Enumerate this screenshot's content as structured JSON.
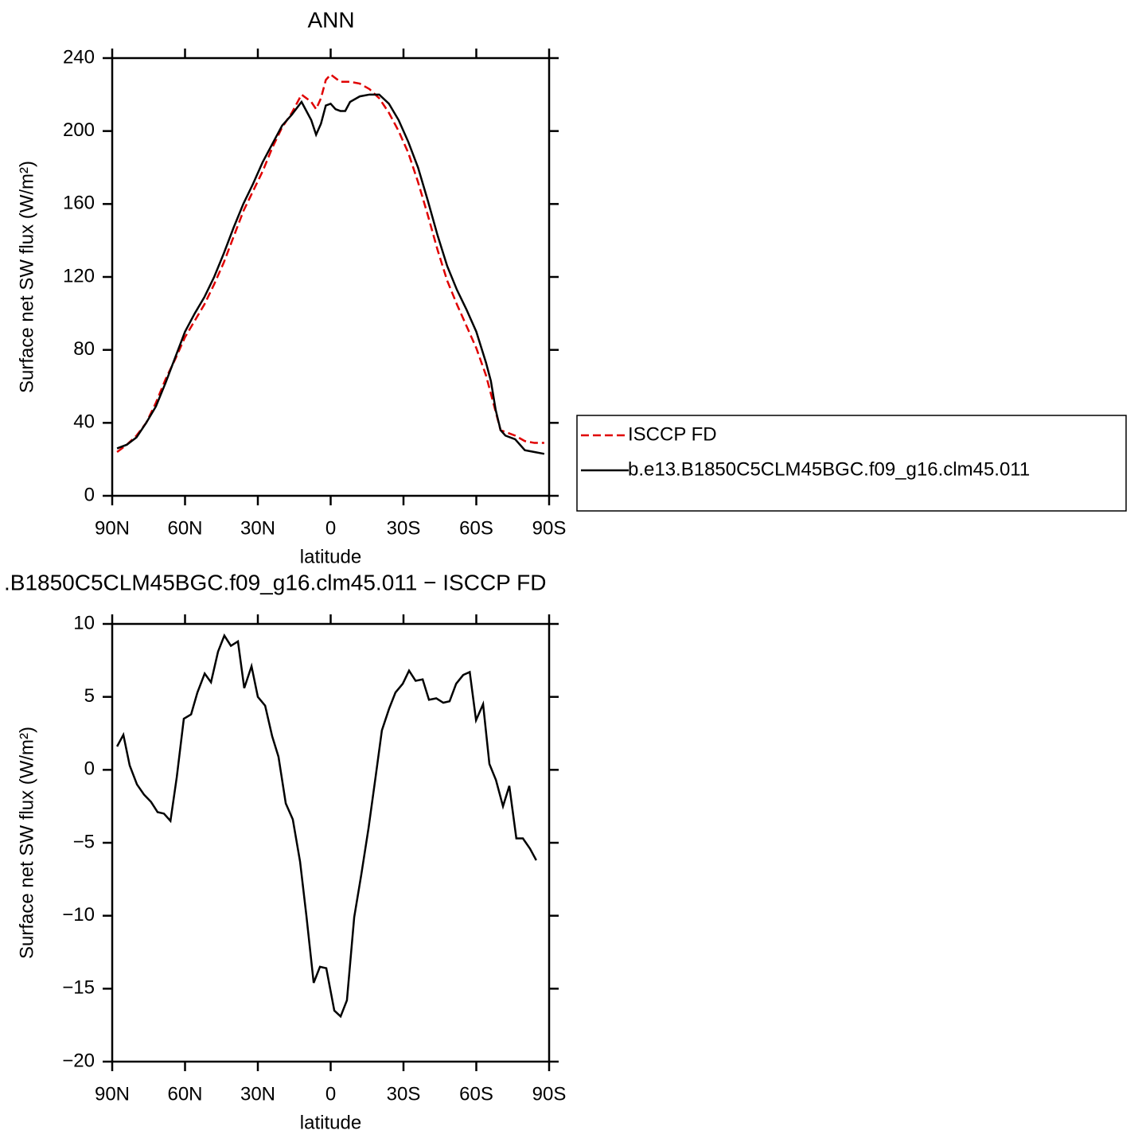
{
  "chart_data": [
    {
      "type": "line",
      "title": "ANN",
      "xlabel": "latitude",
      "ylabel": "Surface net SW flux (W/m²)",
      "x": [
        88,
        84,
        80,
        76,
        72,
        68,
        64,
        60,
        56,
        52,
        48,
        44,
        40,
        36,
        32,
        28,
        24,
        20,
        16,
        12,
        8,
        6,
        4,
        2,
        0,
        -2,
        -4,
        -6,
        -8,
        -12,
        -16,
        -20,
        -24,
        -28,
        -32,
        -36,
        -40,
        -44,
        -48,
        -52,
        -56,
        -60,
        -64,
        -66,
        -68,
        -70,
        -72,
        -76,
        -80,
        -84,
        -88
      ],
      "series": [
        {
          "name": "ISCCP FD",
          "color": "#e00000",
          "dashed": true,
          "values": [
            24,
            28,
            33,
            40,
            51,
            64,
            75,
            87,
            96,
            105,
            116,
            128,
            142,
            156,
            167,
            178,
            191,
            202,
            210,
            220,
            216,
            212,
            218,
            228,
            231,
            229,
            227,
            227,
            227,
            226,
            223,
            218,
            210,
            200,
            188,
            172,
            154,
            135,
            118,
            105,
            93,
            81,
            66,
            56,
            46,
            36,
            35,
            33,
            30,
            29,
            29
          ]
        },
        {
          "name": "b.e13.B1850C5CLM45BGC.f09_g16.clm45.011",
          "color": "#000000",
          "dashed": false,
          "values": [
            26,
            28,
            32,
            40,
            49,
            62,
            76,
            90,
            100,
            109,
            120,
            133,
            147,
            160,
            171,
            183,
            193,
            203,
            209,
            216,
            206,
            198,
            204,
            214,
            215,
            212,
            211,
            211,
            216,
            219,
            220,
            220,
            215,
            206,
            194,
            180,
            162,
            143,
            126,
            113,
            102,
            90,
            73,
            63,
            47,
            36,
            33,
            31,
            25,
            24,
            23
          ]
        }
      ],
      "xlim": [
        90,
        -90
      ],
      "xticks": [
        {
          "value": 90,
          "label": "90N"
        },
        {
          "value": 60,
          "label": "60N"
        },
        {
          "value": 30,
          "label": "30N"
        },
        0,
        {
          "value": -30,
          "label": "30S"
        },
        {
          "value": -60,
          "label": "60S"
        },
        {
          "value": -90,
          "label": "90S"
        }
      ],
      "ylim": [
        0,
        240
      ],
      "yticks": [
        0,
        40,
        80,
        120,
        160,
        200,
        240
      ],
      "legend": "right"
    },
    {
      "type": "line",
      "title": ".B1850C5CLM45BGC.f09_g16.clm45.011 − ISCCP FD",
      "xlabel": "latitude",
      "ylabel": "Surface net SW flux (W/m²)",
      "x": [
        88,
        85.4,
        82.8,
        79.8,
        76.9,
        74,
        71.3,
        68.7,
        66,
        63.4,
        60.5,
        57.5,
        54.9,
        51.9,
        49.3,
        46.4,
        43.8,
        41.1,
        38.2,
        35.6,
        32.6,
        30,
        27,
        24.1,
        21.5,
        18.5,
        15.6,
        12.6,
        10,
        7,
        4.4,
        1.8,
        -1.5,
        -4.1,
        -6.7,
        -9.7,
        -12.6,
        -15.6,
        -18.5,
        -21.1,
        -24.1,
        -26.7,
        -29.7,
        -32.3,
        -35,
        -37.9,
        -40.5,
        -43.5,
        -46.4,
        -49,
        -51.7,
        -54.6,
        -57.3,
        -59.9,
        -62.8,
        -65.4,
        -68.1,
        -71,
        -73.6,
        -76.5,
        -79.2,
        -82.1,
        -84.7
      ],
      "values": [
        1.6,
        2.4,
        0.3,
        -1.0,
        -1.7,
        -2.2,
        -2.9,
        -3.0,
        -3.5,
        -0.5,
        3.5,
        3.8,
        5.3,
        6.6,
        6.0,
        8.1,
        9.2,
        8.5,
        8.8,
        5.6,
        7.1,
        5.0,
        4.4,
        2.3,
        0.9,
        -2.3,
        -3.4,
        -6.3,
        -10,
        -14.6,
        -13.5,
        -13.6,
        -16.5,
        -16.9,
        -15.8,
        -10.1,
        -7.2,
        -4.0,
        -0.5,
        2.7,
        4.2,
        5.3,
        5.9,
        6.8,
        6.1,
        6.2,
        4.8,
        4.9,
        4.6,
        4.7,
        5.9,
        6.5,
        6.7,
        3.4,
        4.5,
        0.4,
        -0.7,
        -2.5,
        -1.1,
        -4.7,
        -4.7,
        -5.4,
        -6.2
      ],
      "color": "#000000",
      "xlim": [
        90,
        -90
      ],
      "xticks": [
        {
          "value": 90,
          "label": "90N"
        },
        {
          "value": 60,
          "label": "60N"
        },
        {
          "value": 30,
          "label": "30N"
        },
        0,
        {
          "value": -30,
          "label": "30S"
        },
        {
          "value": -60,
          "label": "60S"
        },
        {
          "value": -90,
          "label": "90S"
        }
      ],
      "ylim": [
        -20,
        10
      ],
      "yticks": [
        {
          "value": -20,
          "label": "−20"
        },
        {
          "value": -15,
          "label": "−15"
        },
        {
          "value": -10,
          "label": "−10"
        },
        {
          "value": -5,
          "label": "−5"
        },
        0,
        5,
        10
      ]
    }
  ]
}
